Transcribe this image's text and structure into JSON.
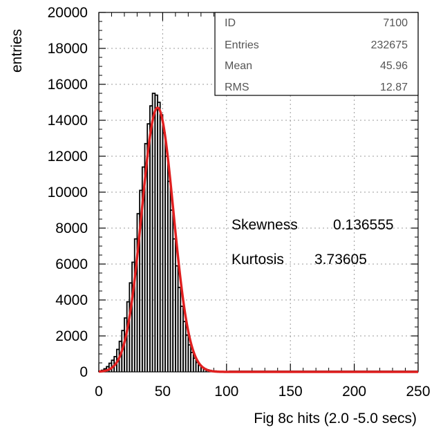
{
  "chart_data": {
    "type": "histogram",
    "xlabel": "Fig 8c   hits (2.0 -5.0 secs)",
    "ylabel": "entries",
    "xlim": [
      0,
      250
    ],
    "ylim": [
      0,
      20000
    ],
    "x_ticks": [
      "0",
      "50",
      "100",
      "150",
      "200",
      "250"
    ],
    "y_ticks": [
      "0",
      "2000",
      "4000",
      "6000",
      "8000",
      "10000",
      "12000",
      "14000",
      "16000",
      "18000",
      "20000"
    ],
    "grid": true,
    "bin_width": 2,
    "bins": [
      [
        0,
        40
      ],
      [
        2,
        90
      ],
      [
        4,
        170
      ],
      [
        6,
        290
      ],
      [
        8,
        480
      ],
      [
        10,
        650
      ],
      [
        12,
        850
      ],
      [
        14,
        1250
      ],
      [
        16,
        1700
      ],
      [
        18,
        2300
      ],
      [
        20,
        3000
      ],
      [
        22,
        3900
      ],
      [
        24,
        4950
      ],
      [
        26,
        6100
      ],
      [
        28,
        7400
      ],
      [
        30,
        8800
      ],
      [
        32,
        10100
      ],
      [
        34,
        11400
      ],
      [
        36,
        12700
      ],
      [
        38,
        13800
      ],
      [
        40,
        14800
      ],
      [
        42,
        15500
      ],
      [
        44,
        15400
      ],
      [
        46,
        15000
      ],
      [
        48,
        14300
      ],
      [
        50,
        13300
      ],
      [
        52,
        12000
      ],
      [
        54,
        10600
      ],
      [
        56,
        9000
      ],
      [
        58,
        7400
      ],
      [
        60,
        5900
      ],
      [
        62,
        4700
      ],
      [
        64,
        3650
      ],
      [
        66,
        2800
      ],
      [
        68,
        2050
      ],
      [
        70,
        1500
      ],
      [
        72,
        1080
      ],
      [
        74,
        760
      ],
      [
        76,
        520
      ],
      [
        78,
        360
      ],
      [
        80,
        250
      ],
      [
        82,
        170
      ],
      [
        84,
        120
      ],
      [
        86,
        85
      ],
      [
        88,
        60
      ],
      [
        90,
        45
      ],
      [
        92,
        30
      ],
      [
        94,
        22
      ],
      [
        96,
        15
      ],
      [
        98,
        10
      ],
      [
        100,
        8
      ]
    ],
    "fit": {
      "type": "gaussian",
      "amplitude": 14700,
      "mean": 46,
      "sigma": 12.4,
      "color": "#e02020"
    },
    "histogram_color": "#000000",
    "stats_box": {
      "rows": [
        {
          "label": "ID",
          "value": "7100"
        },
        {
          "label": "Entries",
          "value": "232675"
        },
        {
          "label": "Mean",
          "value": "45.96"
        },
        {
          "label": "RMS",
          "value": "12.87"
        }
      ]
    },
    "annotations": [
      {
        "label": "Skewness",
        "value": "0.136555"
      },
      {
        "label": "Kurtosis",
        "value": "3.73605"
      }
    ]
  }
}
